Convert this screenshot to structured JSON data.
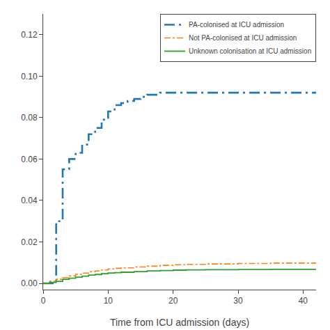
{
  "chart_data": {
    "type": "step",
    "xlabel": "Time from ICU admission (days)",
    "xlim": [
      0,
      42
    ],
    "ylim": [
      -0.003,
      0.13
    ],
    "xticks": [
      0,
      10,
      20,
      30,
      40
    ],
    "yticks": [
      {
        "value": 0.0,
        "label": "0.00"
      },
      0.02,
      0.04,
      0.06,
      0.08,
      {
        "value": 0.1,
        "label": "0.10"
      },
      0.12
    ],
    "grid": false,
    "legend": "upper right",
    "series": [
      {
        "name": "PA-colonised at ICU admission",
        "line_style": "longdashdot",
        "x": [
          0,
          1,
          2,
          2,
          3,
          3,
          4,
          5,
          6,
          7,
          8,
          8,
          9,
          10,
          11,
          12,
          13,
          14,
          15,
          16,
          17,
          18,
          19,
          20,
          21,
          22,
          42
        ],
        "values": [
          0,
          0,
          0,
          0.03,
          0.03,
          0.055,
          0.06,
          0.063,
          0.067,
          0.072,
          0.072,
          0.075,
          0.079,
          0.083,
          0.086,
          0.087,
          0.088,
          0.089,
          0.09,
          0.091,
          0.091,
          0.092,
          0.092,
          0.092,
          0.092,
          0.092,
          0.092
        ]
      },
      {
        "name": "Not PA-colonised at ICU admission",
        "line_style": "dashdot",
        "x": [
          0,
          1,
          2,
          3,
          4,
          5,
          6,
          7,
          8,
          9,
          10,
          11,
          12,
          14,
          16,
          18,
          20,
          22,
          25,
          30,
          35,
          42
        ],
        "values": [
          0,
          0.001,
          0.002,
          0.0028,
          0.0036,
          0.0044,
          0.005,
          0.0056,
          0.006,
          0.0065,
          0.007,
          0.0073,
          0.0075,
          0.0079,
          0.0083,
          0.0087,
          0.009,
          0.0092,
          0.0094,
          0.0096,
          0.0098,
          0.01
        ]
      },
      {
        "name": "Unknown colonisation at ICU admission",
        "line_style": "solid",
        "x": [
          0,
          1,
          2,
          3,
          4,
          5,
          6,
          7,
          8,
          9,
          10,
          11,
          12,
          14,
          16,
          18,
          20,
          22,
          25,
          30,
          35,
          42
        ],
        "values": [
          0,
          0.0005,
          0.001,
          0.002,
          0.0025,
          0.003,
          0.0035,
          0.004,
          0.0043,
          0.0047,
          0.005,
          0.0052,
          0.0054,
          0.0057,
          0.006,
          0.0062,
          0.0064,
          0.0065,
          0.0066,
          0.0067,
          0.0068,
          0.007
        ]
      }
    ]
  }
}
